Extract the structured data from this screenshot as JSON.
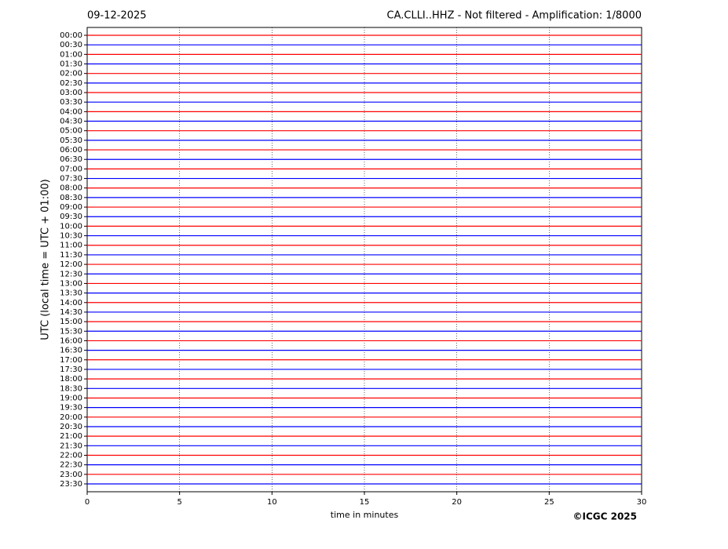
{
  "chart_data": {
    "type": "helicorder",
    "date": "09-12-2025",
    "title": "CA.CLLI..HHZ - Not filtered - Amplification: 1/8000",
    "ylabel": "UTC (local time = UTC + 01:00)",
    "xlabel": "time in minutes",
    "xlim": [
      0,
      30
    ],
    "xticks": [
      0,
      5,
      10,
      15,
      20,
      25,
      30
    ],
    "grid": true,
    "trace_colors": [
      "#ff0000",
      "#0000ff"
    ],
    "rows": [
      "00:00",
      "00:30",
      "01:00",
      "01:30",
      "02:00",
      "02:30",
      "03:00",
      "03:30",
      "04:00",
      "04:30",
      "05:00",
      "05:30",
      "06:00",
      "06:30",
      "07:00",
      "07:30",
      "08:00",
      "08:30",
      "09:00",
      "09:30",
      "10:00",
      "10:30",
      "11:00",
      "11:30",
      "12:00",
      "12:30",
      "13:00",
      "13:30",
      "14:00",
      "14:30",
      "15:00",
      "15:30",
      "16:00",
      "16:30",
      "17:00",
      "17:30",
      "18:00",
      "18:30",
      "19:00",
      "19:30",
      "20:00",
      "20:30",
      "21:00",
      "21:30",
      "22:00",
      "22:30",
      "23:00",
      "23:30"
    ]
  },
  "credit": "©ICGC 2025"
}
